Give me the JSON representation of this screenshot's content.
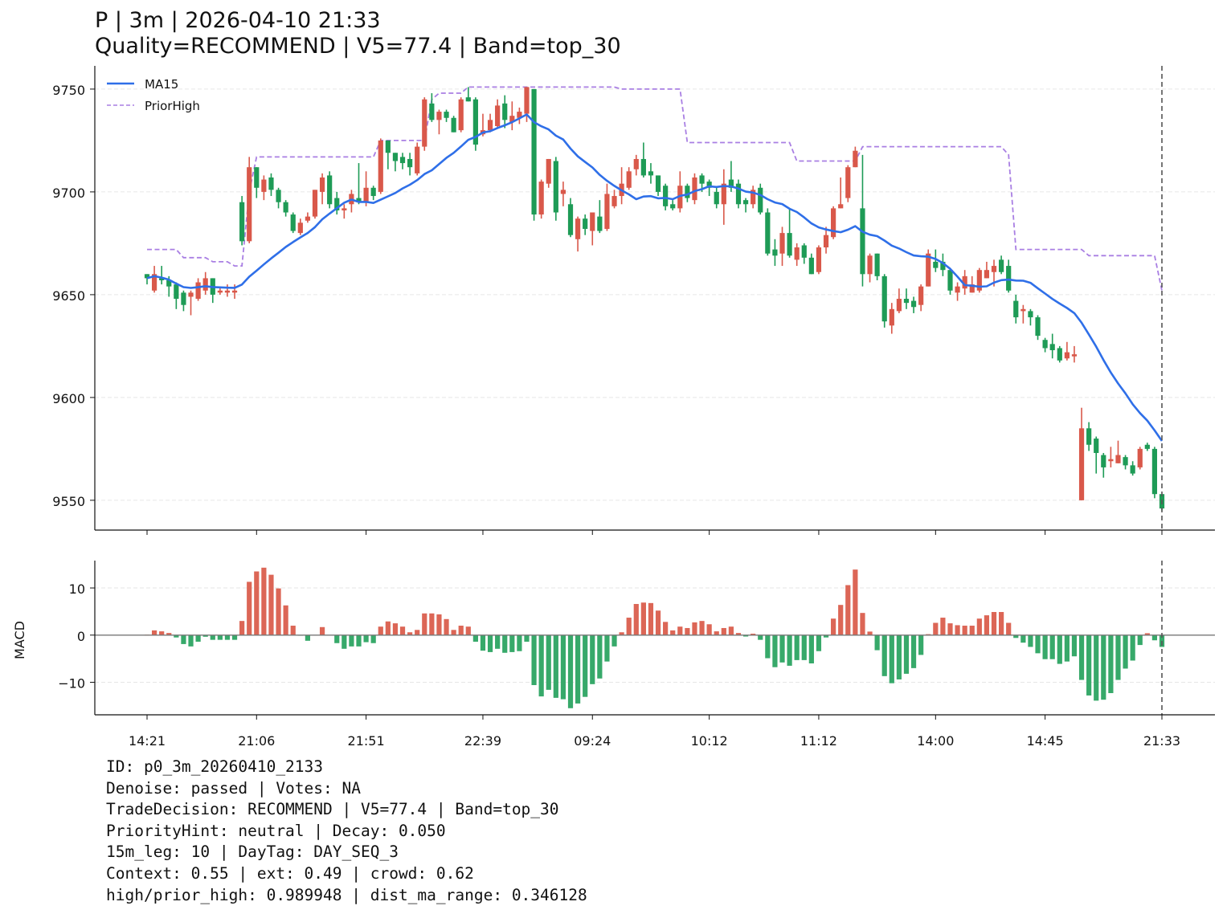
{
  "title": {
    "line1": "P | 3m | 2026-04-10 21:33",
    "line2": "Quality=RECOMMEND | V5=77.4 | Band=top_30"
  },
  "info_lines": [
    "ID: p0_3m_20260410_2133",
    "Denoise: passed | Votes: NA",
    "TradeDecision: RECOMMEND | V5=77.4 | Band=top_30",
    "PriorityHint: neutral | Decay: 0.050",
    "15m_leg: 10 | DayTag: DAY_SEQ_3",
    "Context: 0.55 | ext: 0.49 | crowd: 0.62",
    "high/prior_high: 0.989948 | dist_ma_range: 0.346128"
  ],
  "colors": {
    "up": "#d9584a",
    "down": "#1e9b56",
    "macd_up": "#dc6656",
    "macd_down": "#37a96a",
    "ma": "#2f6fe8",
    "prior_high": "#a97fe3",
    "marker": "#555555"
  },
  "chart_data": [
    {
      "type": "candlestick",
      "legend": {
        "placement": "top-left",
        "entries": [
          "MA15",
          "PriorHigh"
        ]
      },
      "ylim": [
        9535.5,
        9761.3
      ],
      "yticks": [
        9550,
        9600,
        9650,
        9700,
        9750
      ],
      "grid": "horizontal dashed",
      "xtick_labels": [
        {
          "index": 0,
          "label": "14:21"
        },
        {
          "index": 15,
          "label": "21:06"
        },
        {
          "index": 30,
          "label": "21:51"
        },
        {
          "index": 46,
          "label": "22:39"
        },
        {
          "index": 61,
          "label": "09:24"
        },
        {
          "index": 77,
          "label": "10:12"
        },
        {
          "index": 92,
          "label": "11:12"
        },
        {
          "index": 108,
          "label": "14:00"
        },
        {
          "index": 123,
          "label": "14:45"
        },
        {
          "index": 139,
          "label": "21:33"
        }
      ],
      "marker_index": 139,
      "ohlc": [
        [
          9660,
          9660,
          9655,
          9658
        ],
        [
          9652,
          9664,
          9651,
          9660
        ],
        [
          9658,
          9664,
          9655,
          9657
        ],
        [
          9657,
          9659,
          9649,
          9654
        ],
        [
          9655,
          9656,
          9643,
          9648
        ],
        [
          9651,
          9652,
          9642,
          9645
        ],
        [
          9649,
          9652,
          9640,
          9651
        ],
        [
          9648,
          9658,
          9647,
          9656
        ],
        [
          9652,
          9661,
          9650,
          9658
        ],
        [
          9658,
          9658,
          9646,
          9650
        ],
        [
          9651,
          9654,
          9650,
          9652
        ],
        [
          9651,
          9655,
          9649,
          9652
        ],
        [
          9651,
          9655,
          9648,
          9652
        ],
        [
          9695,
          9698,
          9674,
          9676
        ],
        [
          9676,
          9717,
          9675,
          9712
        ],
        [
          9712,
          9712,
          9697,
          9702
        ],
        [
          9700,
          9708,
          9696,
          9706
        ],
        [
          9707,
          9709,
          9698,
          9701
        ],
        [
          9701,
          9702,
          9692,
          9695
        ],
        [
          9695,
          9696,
          9688,
          9690
        ],
        [
          9689,
          9690,
          9680,
          9681
        ],
        [
          9680,
          9687,
          9679,
          9685
        ],
        [
          9686,
          9690,
          9685,
          9688
        ],
        [
          9688,
          9701,
          9687,
          9701
        ],
        [
          9700,
          9709,
          9694,
          9707
        ],
        [
          9708,
          9710,
          9692,
          9694
        ],
        [
          9697,
          9700,
          9689,
          9691
        ],
        [
          9691,
          9694,
          9687,
          9692
        ],
        [
          9694,
          9701,
          9690,
          9699
        ],
        [
          9697,
          9714,
          9694,
          9695
        ],
        [
          9695,
          9710,
          9693,
          9702
        ],
        [
          9702,
          9703,
          9696,
          9698
        ],
        [
          9700,
          9726,
          9699,
          9725
        ],
        [
          9725,
          9725,
          9711,
          9719
        ],
        [
          9719,
          9719,
          9710,
          9715
        ],
        [
          9717,
          9719,
          9711,
          9714
        ],
        [
          9716,
          9719,
          9708,
          9712
        ],
        [
          9709,
          9724,
          9708,
          9722
        ],
        [
          9722,
          9746,
          9720,
          9745
        ],
        [
          9743,
          9748,
          9734,
          9735
        ],
        [
          9735,
          9740,
          9728,
          9739
        ],
        [
          9739,
          9740,
          9734,
          9736
        ],
        [
          9736,
          9737,
          9729,
          9729
        ],
        [
          9730,
          9746,
          9729,
          9745
        ],
        [
          9746,
          9751,
          9744,
          9744
        ],
        [
          9745,
          9746,
          9720,
          9723
        ],
        [
          9728,
          9738,
          9727,
          9730
        ],
        [
          9730,
          9738,
          9729,
          9735
        ],
        [
          9732,
          9745,
          9731,
          9742
        ],
        [
          9743,
          9747,
          9731,
          9735
        ],
        [
          9734,
          9744,
          9730,
          9737
        ],
        [
          9736,
          9741,
          9733,
          9739
        ],
        [
          9738,
          9751,
          9734,
          9751
        ],
        [
          9750,
          9750,
          9686,
          9689
        ],
        [
          9689,
          9706,
          9687,
          9705
        ],
        [
          9704,
          9716,
          9702,
          9716
        ],
        [
          9715,
          9717,
          9686,
          9690
        ],
        [
          9699,
          9705,
          9693,
          9701
        ],
        [
          9694,
          9697,
          9678,
          9679
        ],
        [
          9677,
          9688,
          9671,
          9687
        ],
        [
          9687,
          9689,
          9679,
          9682
        ],
        [
          9681,
          9690,
          9674,
          9690
        ],
        [
          9688,
          9696,
          9680,
          9681
        ],
        [
          9682,
          9704,
          9681,
          9699
        ],
        [
          9693,
          9701,
          9692,
          9698
        ],
        [
          9698,
          9712,
          9694,
          9704
        ],
        [
          9702,
          9712,
          9701,
          9710
        ],
        [
          9711,
          9718,
          9708,
          9716
        ],
        [
          9716,
          9724,
          9707,
          9708
        ],
        [
          9710,
          9714,
          9704,
          9708
        ],
        [
          9708,
          9708,
          9698,
          9700
        ],
        [
          9703,
          9704,
          9691,
          9693
        ],
        [
          9694,
          9696,
          9691,
          9692
        ],
        [
          9692,
          9710,
          9690,
          9703
        ],
        [
          9703,
          9704,
          9695,
          9697
        ],
        [
          9696,
          9709,
          9694,
          9707
        ],
        [
          9708,
          9709,
          9700,
          9704
        ],
        [
          9705,
          9706,
          9698,
          9702
        ],
        [
          9700,
          9702,
          9692,
          9694
        ],
        [
          9694,
          9711,
          9684,
          9704
        ],
        [
          9706,
          9715,
          9700,
          9702
        ],
        [
          9704,
          9706,
          9692,
          9694
        ],
        [
          9696,
          9697,
          9690,
          9694
        ],
        [
          9694,
          9703,
          9692,
          9701
        ],
        [
          9702,
          9704,
          9689,
          9690
        ],
        [
          9690,
          9692,
          9669,
          9670
        ],
        [
          9672,
          9677,
          9664,
          9669
        ],
        [
          9670,
          9683,
          9664,
          9680
        ],
        [
          9680,
          9692,
          9668,
          9669
        ],
        [
          9667,
          9675,
          9664,
          9673
        ],
        [
          9674,
          9675,
          9665,
          9668
        ],
        [
          9668,
          9670,
          9660,
          9660
        ],
        [
          9661,
          9674,
          9660,
          9673
        ],
        [
          9673,
          9683,
          9670,
          9679
        ],
        [
          9678,
          9693,
          9677,
          9692
        ],
        [
          9692,
          9707,
          9692,
          9694
        ],
        [
          9697,
          9713,
          9695,
          9712
        ],
        [
          9712,
          9722,
          9712,
          9720
        ],
        [
          9692,
          9718,
          9654,
          9660
        ],
        [
          9660,
          9670,
          9656,
          9669
        ],
        [
          9670,
          9670,
          9657,
          9659
        ],
        [
          9659,
          9660,
          9634,
          9637
        ],
        [
          9635,
          9646,
          9631,
          9643
        ],
        [
          9642,
          9653,
          9641,
          9648
        ],
        [
          9648,
          9653,
          9643,
          9646
        ],
        [
          9647,
          9649,
          9641,
          9644
        ],
        [
          9645,
          9655,
          9642,
          9654
        ],
        [
          9654,
          9672,
          9654,
          9670
        ],
        [
          9666,
          9672,
          9661,
          9663
        ],
        [
          9666,
          9670,
          9659,
          9662
        ],
        [
          9662,
          9663,
          9650,
          9652
        ],
        [
          9651,
          9656,
          9647,
          9654
        ],
        [
          9653,
          9662,
          9650,
          9659
        ],
        [
          9651,
          9659,
          9651,
          9655
        ],
        [
          9652,
          9663,
          9651,
          9662
        ],
        [
          9658,
          9666,
          9658,
          9662
        ],
        [
          9661,
          9667,
          9654,
          9664
        ],
        [
          9667,
          9669,
          9660,
          9661
        ],
        [
          9664,
          9667,
          9651,
          9652
        ],
        [
          9647,
          9650,
          9636,
          9639
        ],
        [
          9642,
          9645,
          9636,
          9643
        ],
        [
          9642,
          9643,
          9635,
          9639
        ],
        [
          9639,
          9640,
          9628,
          9630
        ],
        [
          9628,
          9629,
          9622,
          9624
        ],
        [
          9626,
          9631,
          9619,
          9623
        ],
        [
          9624,
          9625,
          9617,
          9618
        ],
        [
          9619,
          9627,
          9618,
          9622
        ],
        [
          9620,
          9625,
          9617,
          9621
        ],
        [
          9550,
          9595,
          9550,
          9585
        ],
        [
          9585,
          9588,
          9574,
          9577
        ],
        [
          9580,
          9581,
          9563,
          9573
        ],
        [
          9572,
          9573,
          9561,
          9566
        ],
        [
          9569,
          9576,
          9566,
          9570
        ],
        [
          9568,
          9579,
          9568,
          9572
        ],
        [
          9571,
          9572,
          9565,
          9567
        ],
        [
          9567,
          9569,
          9562,
          9563
        ],
        [
          9566,
          9576,
          9565,
          9575
        ],
        [
          9577,
          9578,
          9574,
          9575
        ],
        [
          9575,
          9576,
          9551,
          9553
        ],
        [
          9553,
          9553,
          9545,
          9546
        ]
      ],
      "ma_period": 15,
      "prior_high": [
        9672,
        9672,
        9672,
        9672,
        9672,
        9668,
        9668,
        9668,
        9668,
        9666,
        9666,
        9666,
        9664,
        9664,
        9700,
        9717,
        9717,
        9717,
        9717,
        9717,
        9717,
        9717,
        9717,
        9717,
        9717,
        9717,
        9717,
        9717,
        9717,
        9717,
        9717,
        9717,
        9725,
        9725,
        9725,
        9725,
        9725,
        9725,
        9725,
        9745,
        9748,
        9748,
        9748,
        9748,
        9751,
        9751,
        9751,
        9751,
        9751,
        9751,
        9751,
        9751,
        9751,
        9751,
        9751,
        9751,
        9751,
        9751,
        9751,
        9751,
        9751,
        9751,
        9751,
        9751,
        9751,
        9750,
        9750,
        9750,
        9750,
        9750,
        9750,
        9750,
        9750,
        9750,
        9724,
        9724,
        9724,
        9724,
        9724,
        9724,
        9724,
        9724,
        9724,
        9724,
        9724,
        9724,
        9724,
        9724,
        9724,
        9715,
        9715,
        9715,
        9715,
        9715,
        9715,
        9715,
        9715,
        9715,
        9722,
        9722,
        9722,
        9722,
        9722,
        9722,
        9722,
        9722,
        9722,
        9722,
        9722,
        9722,
        9722,
        9722,
        9722,
        9722,
        9722,
        9722,
        9722,
        9722,
        9718,
        9672,
        9672,
        9672,
        9672,
        9672,
        9672,
        9672,
        9672,
        9672,
        9672,
        9669,
        9669,
        9669,
        9669,
        9669,
        9669,
        9669,
        9669,
        9669,
        9669,
        9652
      ]
    },
    {
      "type": "bar",
      "ylabel": "MACD",
      "ylim": [
        -16.9,
        15.8
      ],
      "yticks": [
        {
          "value": 10,
          "label": "10"
        },
        {
          "value": 0,
          "label": "0"
        },
        {
          "value": -10,
          "label": "−10"
        }
      ],
      "grid": "horizontal dashed",
      "values": [
        0.1,
        1.0,
        0.8,
        0.45,
        -0.5,
        -1.9,
        -2.4,
        -1.4,
        -0.35,
        -1.0,
        -1.0,
        -1.0,
        -1.0,
        3.0,
        11.3,
        13.5,
        14.3,
        12.8,
        9.9,
        6.3,
        2.0,
        -0.1,
        -1.2,
        0.05,
        1.7,
        0.05,
        -1.7,
        -2.9,
        -2.4,
        -2.4,
        -1.5,
        -1.7,
        1.8,
        2.9,
        2.5,
        1.8,
        0.6,
        1.1,
        4.6,
        4.6,
        4.4,
        3.4,
        1.1,
        2.0,
        1.8,
        -1.4,
        -3.3,
        -3.6,
        -2.9,
        -3.75,
        -3.6,
        -3.4,
        -1.4,
        -10.6,
        -13.0,
        -11.6,
        -13.3,
        -13.6,
        -15.5,
        -14.5,
        -13.1,
        -10.4,
        -9.2,
        -5.6,
        -2.4,
        0.6,
        3.7,
        6.6,
        6.9,
        6.8,
        5.2,
        2.8,
        1.0,
        1.8,
        1.5,
        2.7,
        3.0,
        2.3,
        0.8,
        1.5,
        1.8,
        0.45,
        -0.3,
        0.3,
        -1.0,
        -4.9,
        -6.8,
        -5.8,
        -6.5,
        -5.3,
        -5.3,
        -6.0,
        -3.4,
        -0.5,
        3.5,
        6.4,
        10.6,
        13.9,
        4.7,
        0.75,
        -3.2,
        -8.7,
        -10.2,
        -9.4,
        -8.2,
        -7.0,
        -4.2,
        0.2,
        2.6,
        3.7,
        2.5,
        2.1,
        2.0,
        2.0,
        3.5,
        4.2,
        4.9,
        4.9,
        2.6,
        -0.6,
        -1.6,
        -2.5,
        -3.85,
        -5.1,
        -5.1,
        -6.1,
        -5.6,
        -4.5,
        -9.5,
        -12.8,
        -13.9,
        -13.7,
        -12.3,
        -9.5,
        -7.1,
        -5.4,
        -2.1,
        0.4,
        -1.1,
        -2.5
      ]
    }
  ]
}
